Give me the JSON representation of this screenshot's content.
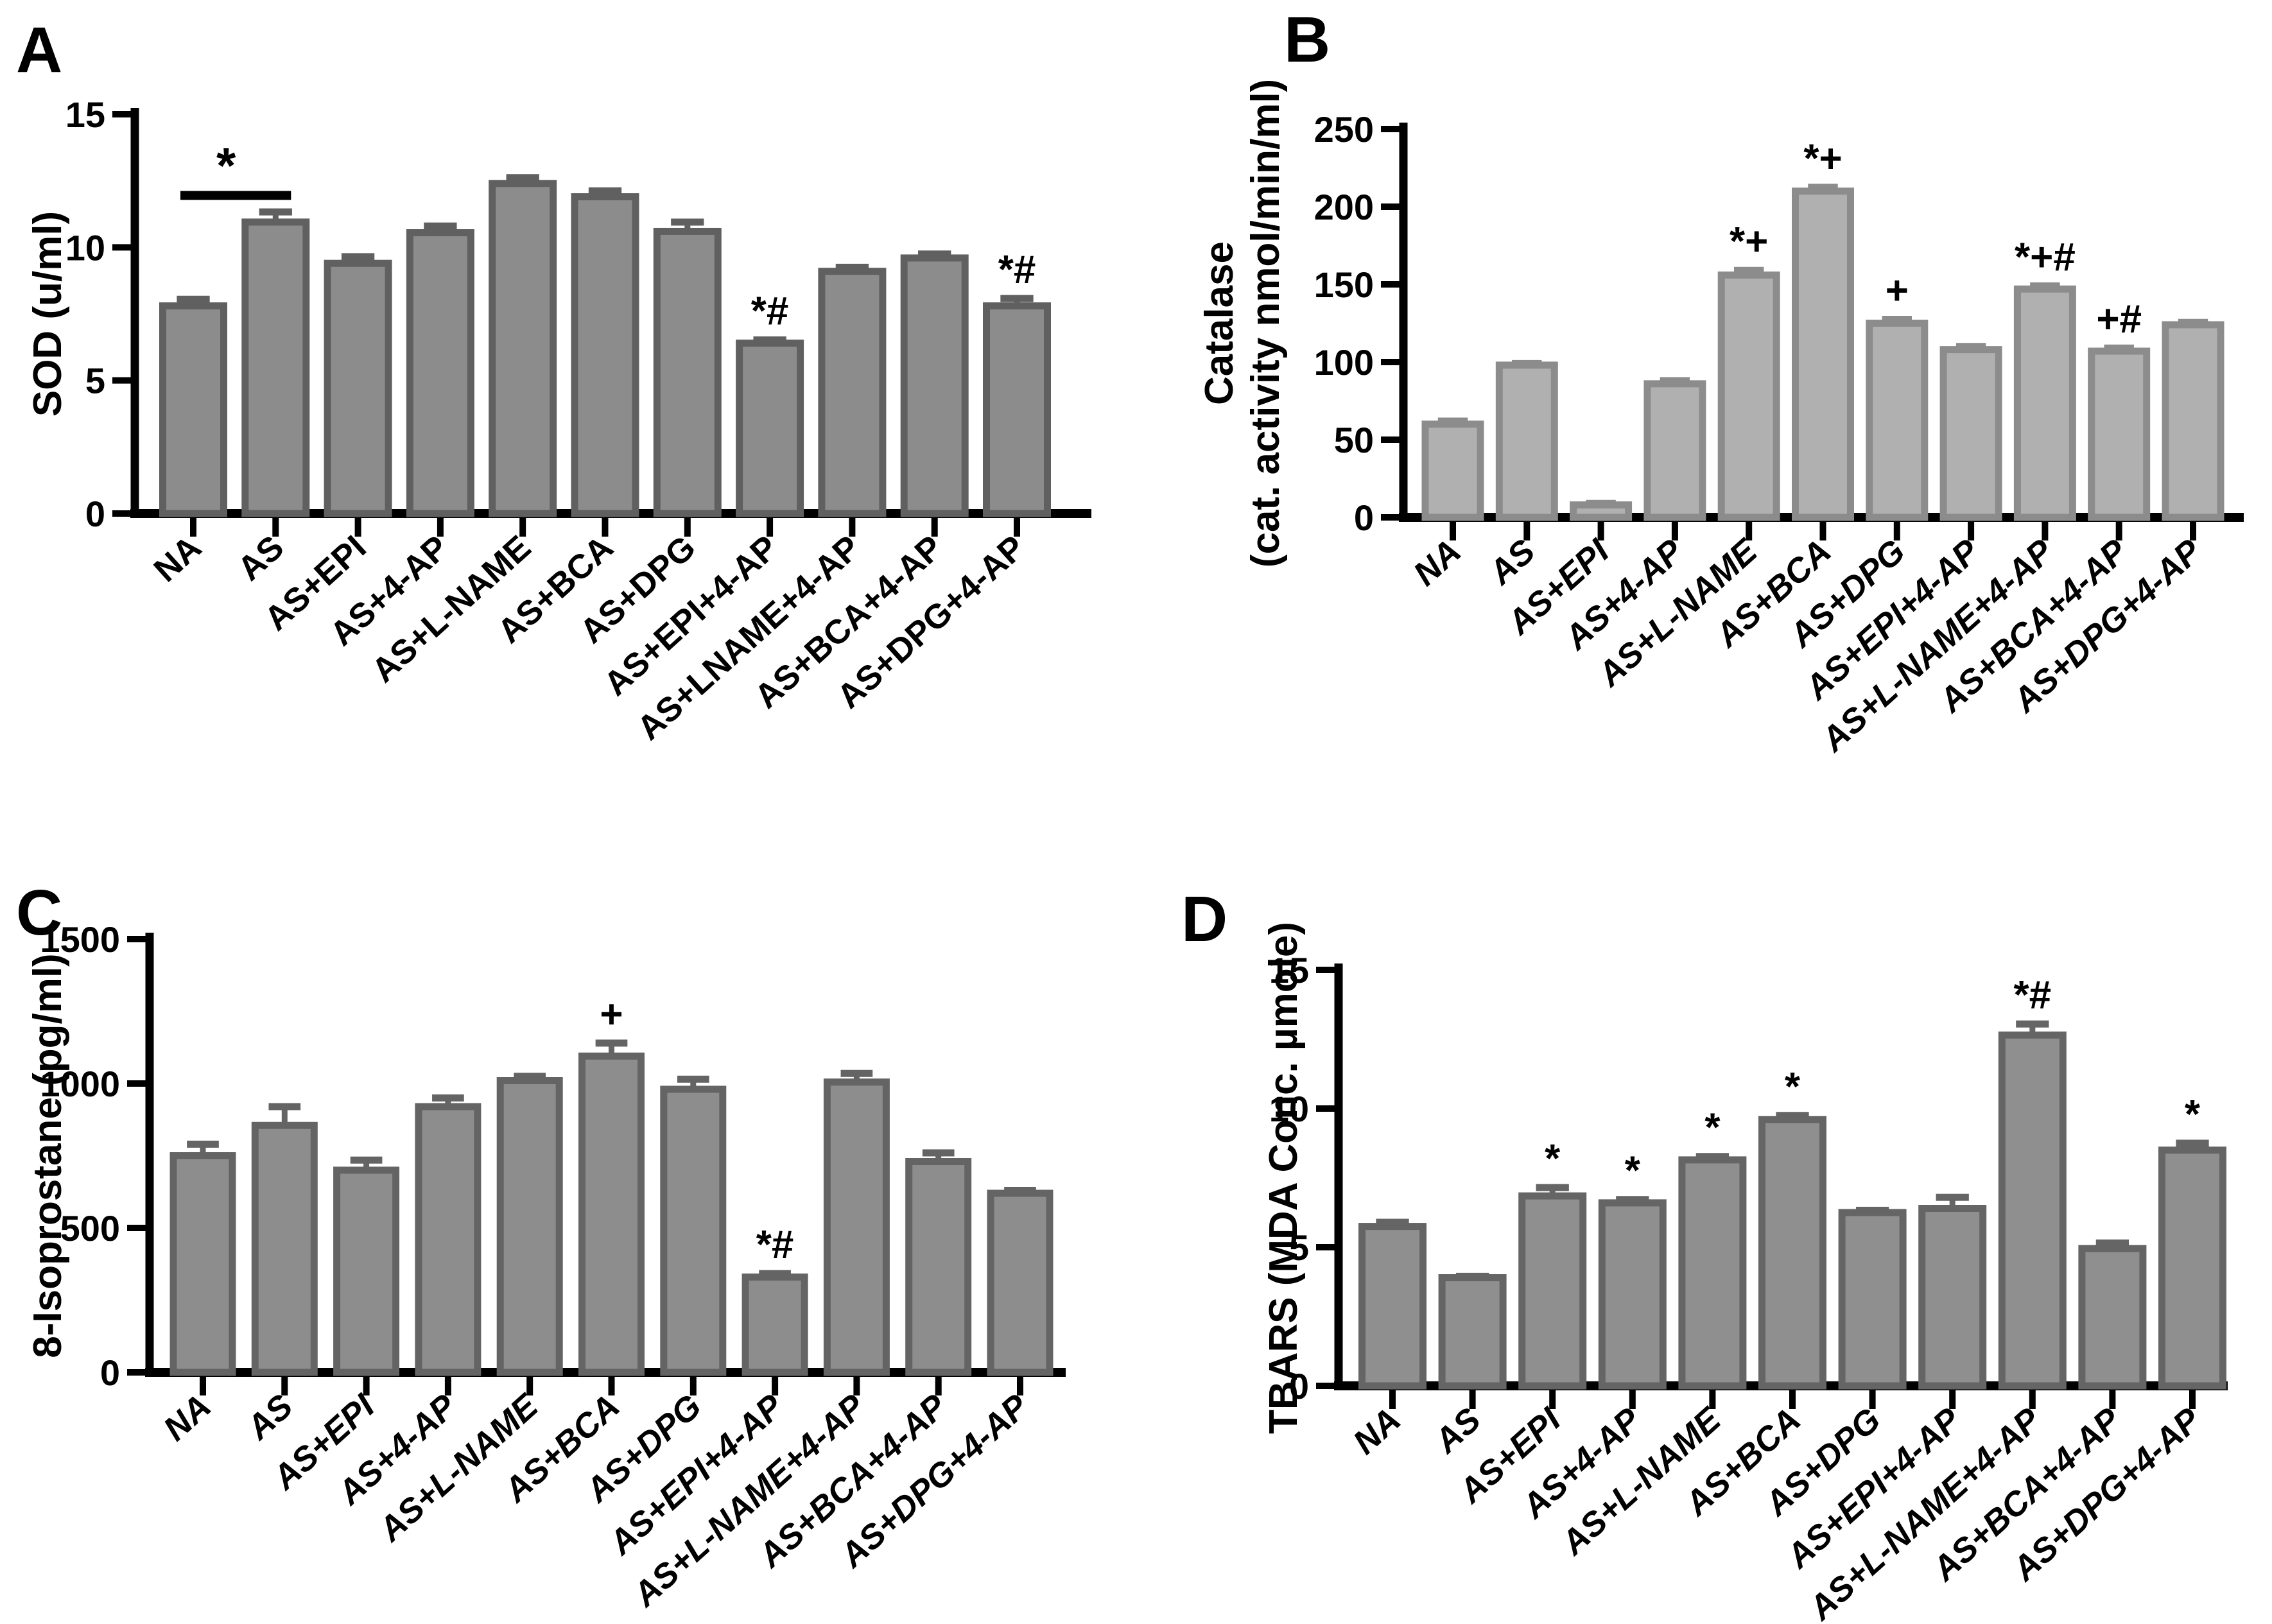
{
  "figure_title": "",
  "chart_data": [
    {
      "panel_label": "A",
      "type": "bar",
      "title": "",
      "xlabel": "",
      "ylabel_lines": [
        "SOD (u/ml)"
      ],
      "ylim": [
        0,
        15
      ],
      "yticks": [
        0,
        5,
        10,
        15
      ],
      "grid": false,
      "legend": null,
      "labels_italic": false,
      "categories": [
        "NA",
        "AS",
        "AS+EPI",
        "AS+4-AP",
        "AS+L-NAME",
        "AS+BCA",
        "AS+DPG",
        "AS+EPI+4-AP",
        "AS+LNAME+4-AP",
        "AS+BCA+4-AP",
        "AS+DPG+4-AP"
      ],
      "values": [
        7.8,
        10.95,
        9.4,
        10.55,
        12.4,
        11.9,
        10.6,
        6.4,
        9.1,
        9.6,
        7.8
      ],
      "errors": [
        0.25,
        0.38,
        0.25,
        0.25,
        0.22,
        0.22,
        0.35,
        0.12,
        0.15,
        0.15,
        0.28
      ],
      "annotations": [
        "",
        "",
        "",
        "",
        "",
        "",
        "",
        "*#",
        "",
        "",
        "*#"
      ],
      "bracket": {
        "from": 0,
        "to": 1,
        "value": 11.95,
        "label": "*"
      },
      "colors": {
        "bar_fill": "#8c8c8c",
        "bar_stroke": "#606060",
        "error": "#606060",
        "axis": "#000000"
      }
    },
    {
      "panel_label": "B",
      "type": "bar",
      "title": "",
      "xlabel": "",
      "ylabel_lines": [
        "Catalase",
        "(cat. activity nmol/min/ml)"
      ],
      "ylim": [
        0,
        250
      ],
      "yticks": [
        0,
        50,
        100,
        150,
        200,
        250
      ],
      "grid": false,
      "legend": null,
      "labels_italic": true,
      "categories": [
        "NA",
        "AS",
        "AS+EPI",
        "AS+4-AP",
        "AS+L-NAME",
        "AS+BCA",
        "AS+DPG",
        "AS+EPI+4-AP",
        "AS+L-NAME+4-AP",
        "AS+BCA+4-AP",
        "AS+DPG+4-AP"
      ],
      "values": [
        60,
        98,
        8,
        86,
        156,
        210,
        125,
        108,
        147,
        107,
        124
      ],
      "errors": [
        2,
        1,
        1,
        2,
        3,
        2.5,
        2.5,
        2,
        2,
        2,
        1.5
      ],
      "annotations": [
        "",
        "",
        "",
        "",
        "*+",
        "*+",
        "+",
        "",
        "*+#",
        "+#",
        ""
      ],
      "bracket": null,
      "colors": {
        "bar_fill": "#b0b0b0",
        "bar_stroke": "#8c8c8c",
        "error": "#8c8c8c",
        "axis": "#000000"
      }
    },
    {
      "panel_label": "C",
      "type": "bar",
      "title": "",
      "xlabel": "",
      "ylabel_lines": [
        "8-Isoprostane (pg/ml)"
      ],
      "ylim": [
        0,
        1500
      ],
      "yticks": [
        0,
        500,
        1000,
        1500
      ],
      "grid": false,
      "legend": null,
      "labels_italic": true,
      "categories": [
        "NA",
        "AS",
        "AS+EPI",
        "AS+4-AP",
        "AS+L-NAME",
        "AS+BCA",
        "AS+DPG",
        "AS+EPI+4-AP",
        "AS+L-NAME+4-AP",
        "AS+BCA+4-AP",
        "AS+DPG+4-AP"
      ],
      "values": [
        750,
        855,
        700,
        920,
        1010,
        1095,
        980,
        330,
        1005,
        730,
        620
      ],
      "errors": [
        40,
        65,
        35,
        30,
        15,
        45,
        35,
        12,
        30,
        30,
        10
      ],
      "annotations": [
        "",
        "",
        "",
        "",
        "",
        "+",
        "",
        "*#",
        "",
        "",
        ""
      ],
      "bracket": null,
      "colors": {
        "bar_fill": "#8d8d8d",
        "bar_stroke": "#646464",
        "error": "#646464",
        "axis": "#000000"
      }
    },
    {
      "panel_label": "D",
      "type": "bar",
      "title": "",
      "xlabel": "",
      "ylabel_lines": [
        "TBARS (MDA Conc. µmole)"
      ],
      "ylim": [
        0,
        15
      ],
      "yticks": [
        0,
        5,
        10,
        15
      ],
      "grid": false,
      "legend": null,
      "labels_italic": true,
      "categories": [
        "NA",
        "AS",
        "AS+EPI",
        "AS+4-AP",
        "AS+L-NAME",
        "AS+BCA",
        "AS+DPG",
        "AS+EPI+4-AP",
        "AS+L-NAME+4-AP",
        "AS+BCA+4-AP",
        "AS+DPG+4-AP"
      ],
      "values": [
        5.75,
        3.9,
        6.85,
        6.6,
        8.15,
        9.6,
        6.25,
        6.4,
        12.65,
        4.95,
        8.5
      ],
      "errors": [
        0.15,
        0.05,
        0.3,
        0.12,
        0.12,
        0.15,
        0.08,
        0.4,
        0.4,
        0.2,
        0.25
      ],
      "annotations": [
        "",
        "",
        "*",
        "*",
        "*",
        "*",
        "",
        "",
        "*#",
        "",
        "*"
      ],
      "bracket": null,
      "colors": {
        "bar_fill": "#8f8f8f",
        "bar_stroke": "#656565",
        "error": "#656565",
        "axis": "#000000"
      }
    }
  ]
}
